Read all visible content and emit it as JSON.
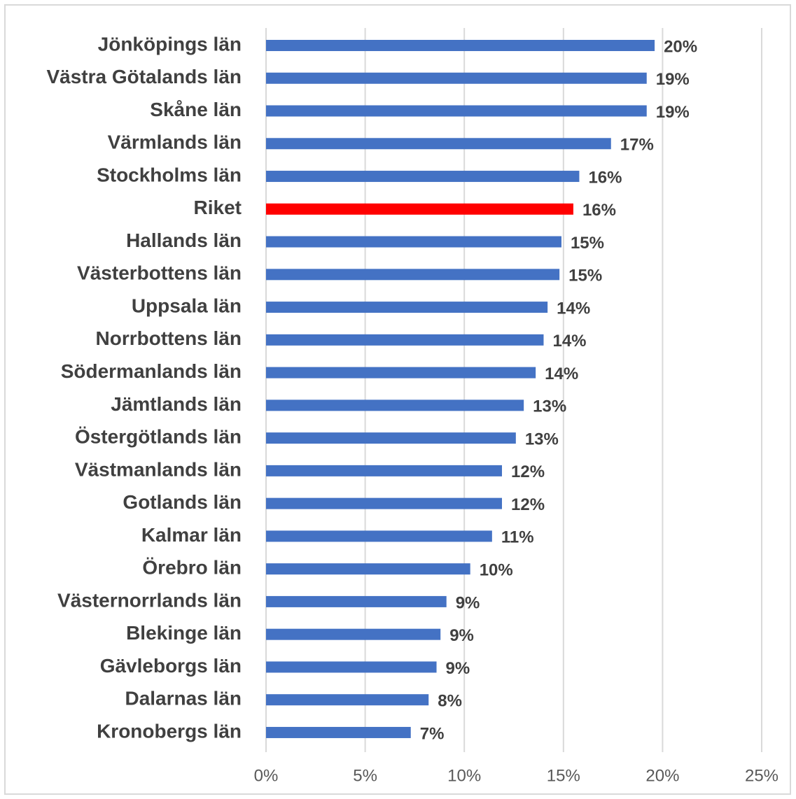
{
  "chart_data": {
    "type": "hbar",
    "categories": [
      "Jönköpings län",
      "Västra Götalands län",
      "Skåne län",
      "Värmlands län",
      "Stockholms län",
      "Riket",
      "Hallands län",
      "Västerbottens län",
      "Uppsala län",
      "Norrbottens län",
      "Södermanlands län",
      "Jämtlands län",
      "Östergötlands län",
      "Västmanlands län",
      "Gotlands län",
      "Kalmar län",
      "Örebro län",
      "Västernorrlands län",
      "Blekinge län",
      "Gävleborgs län",
      "Dalarnas län",
      "Kronobergs län"
    ],
    "values": [
      19.6,
      19.2,
      19.2,
      17.4,
      15.8,
      15.5,
      14.9,
      14.8,
      14.2,
      14.0,
      13.6,
      13.0,
      12.6,
      11.9,
      11.9,
      11.4,
      10.3,
      9.1,
      8.8,
      8.6,
      8.2,
      7.3
    ],
    "value_labels": [
      "20%",
      "19%",
      "19%",
      "17%",
      "16%",
      "16%",
      "15%",
      "15%",
      "14%",
      "14%",
      "14%",
      "13%",
      "13%",
      "12%",
      "12%",
      "11%",
      "10%",
      "9%",
      "9%",
      "9%",
      "8%",
      "7%"
    ],
    "colors": [
      "#4472c4",
      "#4472c4",
      "#4472c4",
      "#4472c4",
      "#4472c4",
      "#ff0000",
      "#4472c4",
      "#4472c4",
      "#4472c4",
      "#4472c4",
      "#4472c4",
      "#4472c4",
      "#4472c4",
      "#4472c4",
      "#4472c4",
      "#4472c4",
      "#4472c4",
      "#4472c4",
      "#4472c4",
      "#4472c4",
      "#4472c4",
      "#4472c4"
    ],
    "xlim": [
      0,
      25
    ],
    "xticks": [
      {
        "value": 0,
        "label": "0%"
      },
      {
        "value": 5,
        "label": "5%"
      },
      {
        "value": 10,
        "label": "10%"
      },
      {
        "value": 15,
        "label": "15%"
      },
      {
        "value": 20,
        "label": "20%"
      },
      {
        "value": 25,
        "label": "25%"
      }
    ],
    "grid": true
  }
}
